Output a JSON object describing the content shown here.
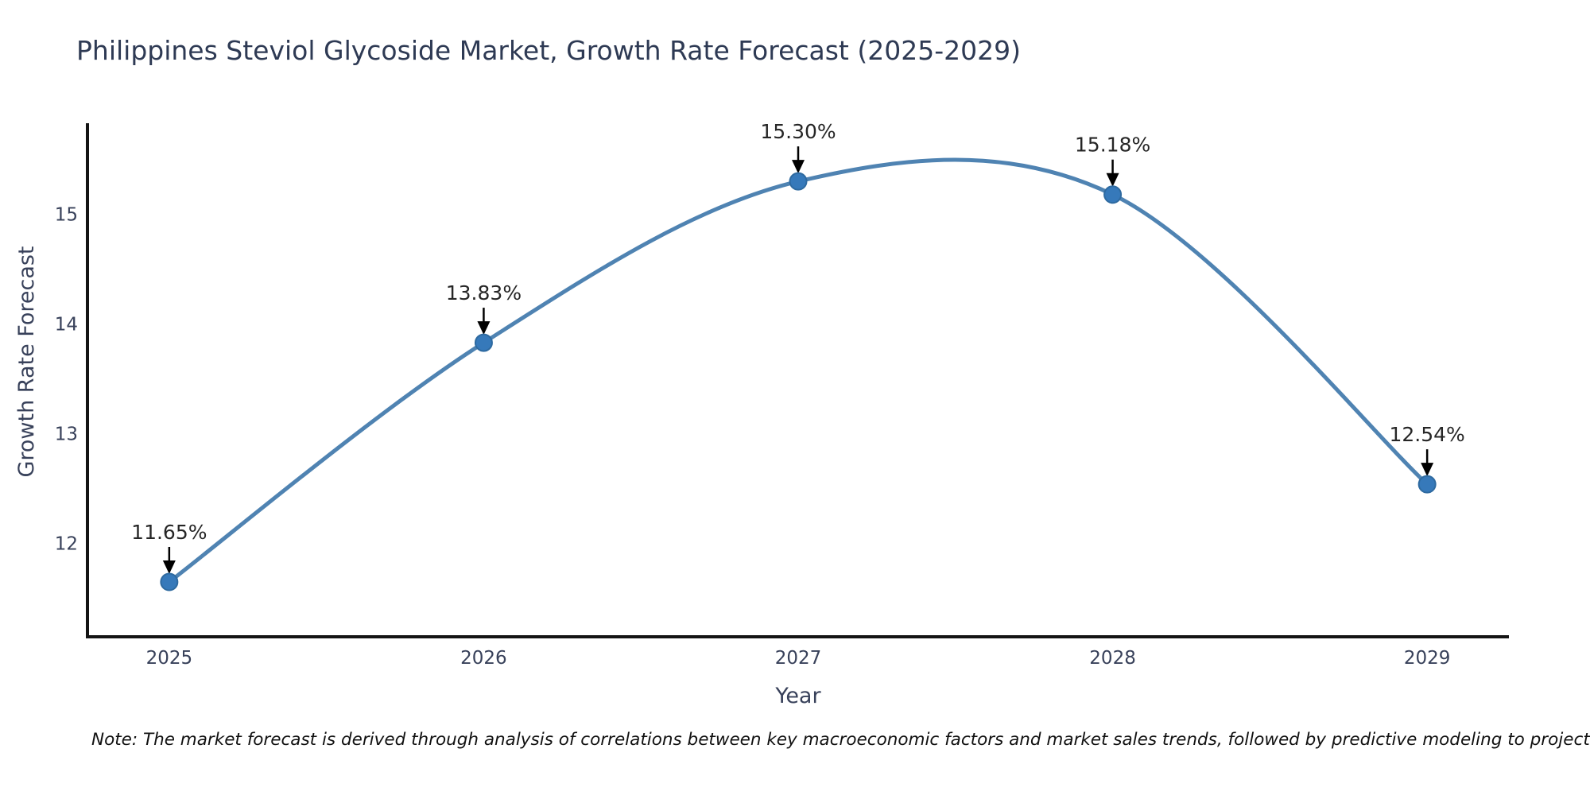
{
  "note": "Note: The market forecast is derived through analysis of correlations between key macroeconomic factors and market sales trends, followed by predictive modeling to project future sales",
  "chart_data": {
    "type": "line",
    "title": "Philippines Steviol Glycoside Market, Growth Rate Forecast (2025-2029)",
    "xlabel": "Year",
    "ylabel": "Growth Rate Forecast",
    "x": [
      2025,
      2026,
      2027,
      2028,
      2029
    ],
    "values": [
      11.65,
      13.83,
      15.3,
      15.18,
      12.54
    ],
    "point_labels": [
      "11.65%",
      "13.83%",
      "15.30%",
      "15.18%",
      "12.54%"
    ],
    "y_ticks": [
      12,
      13,
      14,
      15
    ],
    "x_range": [
      2024.74,
      2029.26
    ],
    "y_range": [
      11.15,
      15.83
    ],
    "line_shape": "spline",
    "grid": false,
    "legend": "none",
    "colors": {
      "line": "#4f83b2",
      "marker": "#3679ba",
      "marker_edge": "#2e6aa0",
      "axis": "#141414",
      "title_text": "#2e3a54",
      "tick_text": "#38415a",
      "label_text": "#262626",
      "arrow": "#000000",
      "note_text": "#111111",
      "background": "#ffffff"
    }
  }
}
